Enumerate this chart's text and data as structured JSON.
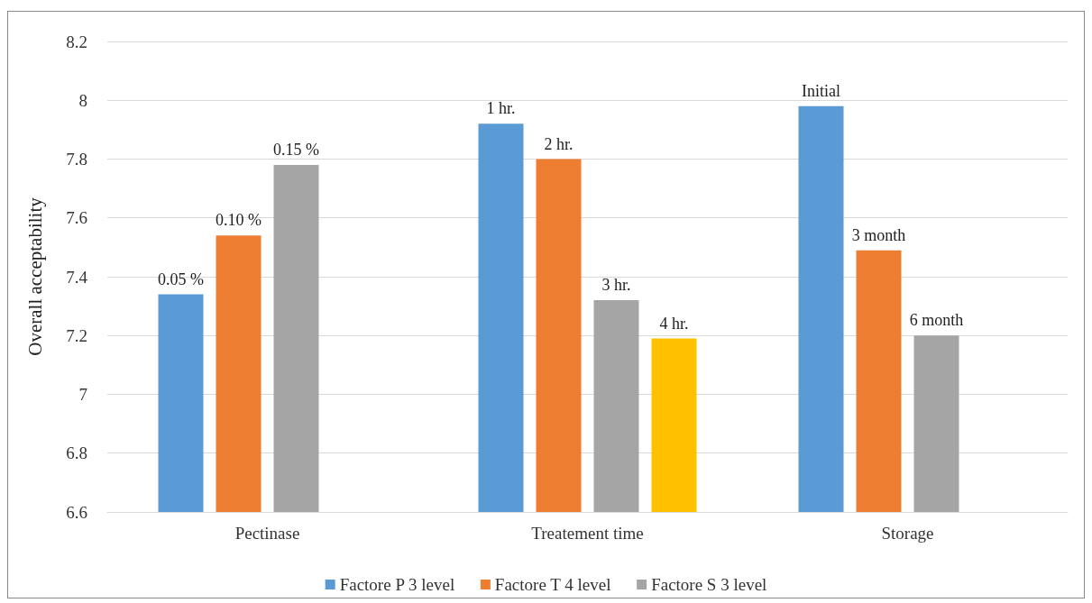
{
  "chart_data": {
    "type": "bar",
    "ylabel": "Overall acceptability",
    "categories": [
      "Pectinase",
      "Treatement time",
      "Storage"
    ],
    "series": [
      {
        "name": "Factore P 3 level",
        "color": "#5b9bd5",
        "values": [
          7.34,
          7.92,
          7.98
        ]
      },
      {
        "name": "Factore T 4 level",
        "color": "#ed7d31",
        "values": [
          7.54,
          7.8,
          7.49
        ]
      },
      {
        "name": "Factore S 3 level",
        "color": "#a5a5a5",
        "values": [
          7.78,
          7.32,
          7.2
        ]
      },
      {
        "color": "#ffc000",
        "values": [
          null,
          7.19,
          null
        ]
      }
    ],
    "annotations": [
      "0.05 %",
      "0.10 %",
      "0.15 %",
      "1 hr.",
      "2 hr.",
      "3 hr.",
      "4 hr.",
      "Initial",
      "3 month",
      "6 month"
    ],
    "ylim": [
      6.6,
      8.2
    ],
    "yticks": [
      6.6,
      6.8,
      7,
      7.2,
      7.4,
      7.6,
      7.8,
      8,
      8.2
    ],
    "grid": "y",
    "legend": "bottom"
  }
}
